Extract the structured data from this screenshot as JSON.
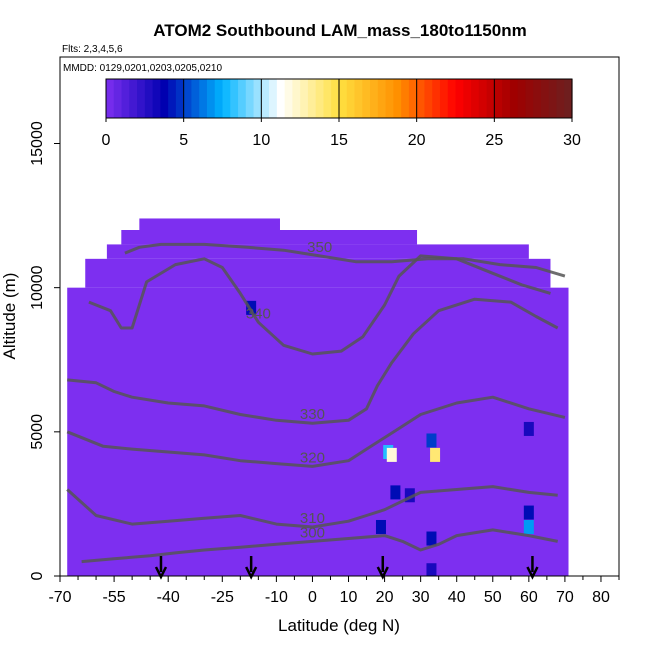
{
  "chart_data": {
    "type": "heatmap",
    "title": "ATOM2 Southbound LAM_mass_180to1150nm",
    "subtitle_flights": "Flts: 2,3,4,5,6",
    "subtitle_dates": "MMDD: 0129,0201,0203,0205,0210",
    "xlabel": "Latitude (deg N)",
    "ylabel": "Altitude (m)",
    "xlim": [
      -70,
      85
    ],
    "ylim": [
      0,
      18000
    ],
    "x_ticks": [
      -70,
      -55,
      -40,
      -25,
      -10,
      0,
      10,
      20,
      30,
      40,
      50,
      60,
      70,
      80
    ],
    "y_ticks": [
      0,
      5000,
      10000,
      15000
    ],
    "colorbar": {
      "range": [
        0,
        30
      ],
      "ticks": [
        0,
        5,
        10,
        15,
        20,
        25,
        30
      ],
      "colors": [
        "#7d2ff0",
        "#0000b0",
        "#00b4ff",
        "#ffffff",
        "#ffe040",
        "#ff9000",
        "#ff0000",
        "#a00000",
        "#6b2020"
      ]
    },
    "background_value": 0,
    "coverage_bands": [
      {
        "lat_min": -68,
        "lat_max": 71,
        "alt_min": 0,
        "alt_max": 10000
      },
      {
        "lat_min": -63,
        "lat_max": 66,
        "alt_min": 10000,
        "alt_max": 11000
      },
      {
        "lat_min": -57,
        "lat_max": 60,
        "alt_min": 11000,
        "alt_max": 11500
      },
      {
        "lat_min": -53,
        "lat_max": 29,
        "alt_min": 11500,
        "alt_max": 12000
      },
      {
        "lat_min": -48,
        "lat_max": -9,
        "alt_min": 12000,
        "alt_max": 12400
      }
    ],
    "hotspots": [
      {
        "lat": -17,
        "alt": 9300,
        "value": 4
      },
      {
        "lat": 21,
        "alt": 4300,
        "value": 8
      },
      {
        "lat": 22,
        "alt": 4200,
        "value": 12
      },
      {
        "lat": 33,
        "alt": 4700,
        "value": 5
      },
      {
        "lat": 34,
        "alt": 4200,
        "value": 14
      },
      {
        "lat": 23,
        "alt": 2900,
        "value": 4
      },
      {
        "lat": 27,
        "alt": 2800,
        "value": 3
      },
      {
        "lat": 19,
        "alt": 1700,
        "value": 4
      },
      {
        "lat": 33,
        "alt": 1300,
        "value": 4
      },
      {
        "lat": 60,
        "alt": 2200,
        "value": 4
      },
      {
        "lat": 60,
        "alt": 1700,
        "value": 7
      },
      {
        "lat": 33,
        "alt": 200,
        "value": 3
      },
      {
        "lat": 60,
        "alt": 5100,
        "value": 3
      }
    ],
    "contours": [
      {
        "level": 300,
        "label": "300",
        "points": [
          [
            -64,
            500
          ],
          [
            -55,
            600
          ],
          [
            -45,
            700
          ],
          [
            -38,
            800
          ],
          [
            -30,
            900
          ],
          [
            -20,
            1000
          ],
          [
            -10,
            1100
          ],
          [
            0,
            1200
          ],
          [
            10,
            1300
          ],
          [
            20,
            1400
          ],
          [
            25,
            1200
          ],
          [
            30,
            900
          ],
          [
            35,
            1100
          ],
          [
            40,
            1400
          ],
          [
            50,
            1600
          ],
          [
            60,
            1400
          ],
          [
            68,
            1200
          ]
        ]
      },
      {
        "level": 310,
        "label": "310",
        "points": [
          [
            -68,
            3000
          ],
          [
            -60,
            2100
          ],
          [
            -50,
            1800
          ],
          [
            -40,
            1900
          ],
          [
            -30,
            2000
          ],
          [
            -20,
            2100
          ],
          [
            -10,
            1800
          ],
          [
            0,
            1700
          ],
          [
            10,
            1900
          ],
          [
            15,
            2100
          ],
          [
            20,
            2300
          ],
          [
            25,
            2600
          ],
          [
            30,
            2900
          ],
          [
            40,
            3000
          ],
          [
            50,
            3100
          ],
          [
            60,
            2900
          ],
          [
            68,
            2800
          ]
        ]
      },
      {
        "level": 320,
        "label": "320",
        "points": [
          [
            -68,
            5000
          ],
          [
            -58,
            4500
          ],
          [
            -50,
            4400
          ],
          [
            -40,
            4300
          ],
          [
            -30,
            4200
          ],
          [
            -20,
            4000
          ],
          [
            -10,
            3900
          ],
          [
            0,
            3800
          ],
          [
            10,
            4000
          ],
          [
            15,
            4400
          ],
          [
            20,
            4800
          ],
          [
            25,
            5200
          ],
          [
            30,
            5600
          ],
          [
            40,
            6000
          ],
          [
            50,
            6200
          ],
          [
            60,
            5800
          ],
          [
            70,
            5500
          ]
        ]
      },
      {
        "level": 330,
        "label": "330",
        "points": [
          [
            -68,
            6800
          ],
          [
            -60,
            6700
          ],
          [
            -55,
            6400
          ],
          [
            -50,
            6200
          ],
          [
            -40,
            6000
          ],
          [
            -30,
            5900
          ],
          [
            -20,
            5600
          ],
          [
            -10,
            5400
          ],
          [
            0,
            5300
          ],
          [
            10,
            5400
          ],
          [
            15,
            5800
          ],
          [
            18,
            6600
          ],
          [
            22,
            7400
          ],
          [
            28,
            8400
          ],
          [
            35,
            9200
          ],
          [
            45,
            9600
          ],
          [
            55,
            9500
          ],
          [
            62,
            9000
          ],
          [
            68,
            8600
          ]
        ]
      },
      {
        "level": 340,
        "label": "340",
        "points": [
          [
            -62,
            9500
          ],
          [
            -56,
            9200
          ],
          [
            -53,
            8600
          ],
          [
            -50,
            8600
          ],
          [
            -46,
            10200
          ],
          [
            -38,
            10800
          ],
          [
            -30,
            11000
          ],
          [
            -25,
            10700
          ],
          [
            -20,
            9800
          ],
          [
            -15,
            8800
          ],
          [
            -8,
            8000
          ],
          [
            0,
            7700
          ],
          [
            8,
            7800
          ],
          [
            14,
            8300
          ],
          [
            20,
            9400
          ],
          [
            24,
            10400
          ],
          [
            30,
            11100
          ],
          [
            40,
            11000
          ],
          [
            50,
            10500
          ],
          [
            58,
            10100
          ],
          [
            66,
            9800
          ]
        ]
      },
      {
        "level": 350,
        "label": "350",
        "points": [
          [
            -52,
            11200
          ],
          [
            -48,
            11400
          ],
          [
            -42,
            11500
          ],
          [
            -30,
            11500
          ],
          [
            -18,
            11400
          ],
          [
            -8,
            11300
          ],
          [
            2,
            11100
          ],
          [
            12,
            10900
          ],
          [
            22,
            10900
          ],
          [
            32,
            11000
          ],
          [
            42,
            11000
          ],
          [
            52,
            10800
          ],
          [
            62,
            10700
          ],
          [
            70,
            10400
          ]
        ]
      }
    ],
    "flight_arrows": [
      -42,
      -17,
      19.5,
      61
    ]
  }
}
